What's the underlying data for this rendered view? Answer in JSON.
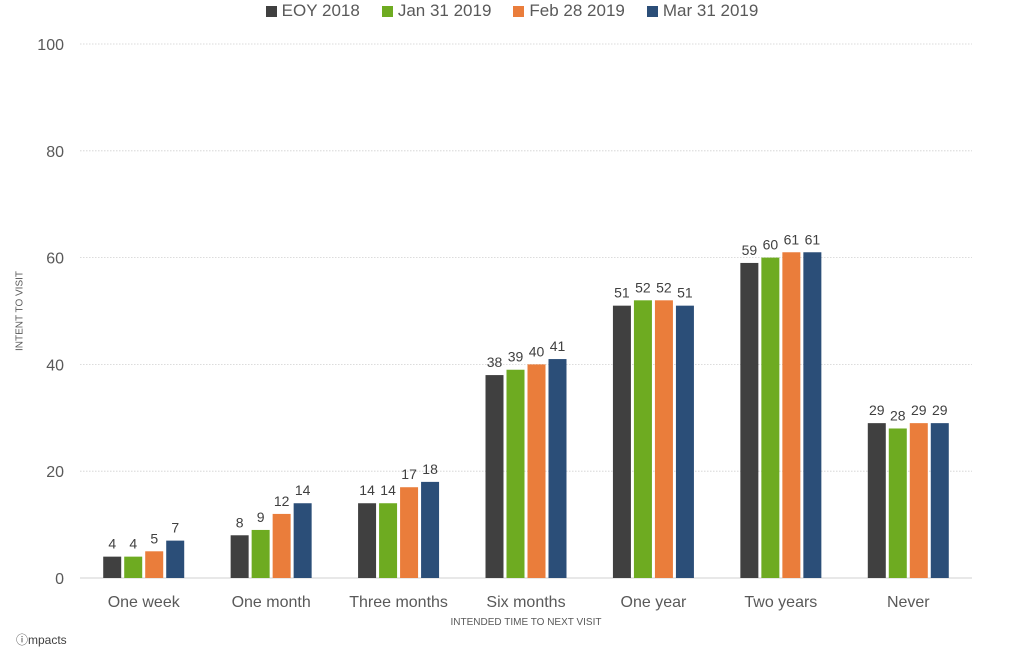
{
  "chart_data": {
    "type": "bar",
    "title": "",
    "xlabel": "INTENDED TIME TO NEXT VISIT",
    "ylabel": "INTENT TO VISIT",
    "ylim": [
      0,
      100
    ],
    "yticks": [
      0,
      20,
      40,
      60,
      80,
      100
    ],
    "grid": true,
    "legend_position": "top-center",
    "categories": [
      "One week",
      "One month",
      "Three months",
      "Six months",
      "One year",
      "Two years",
      "Never"
    ],
    "series": [
      {
        "name": "EOY 2018",
        "color": "#404040",
        "values": [
          4,
          8,
          14,
          38,
          51,
          59,
          29
        ]
      },
      {
        "name": "Jan 31 2019",
        "color": "#6eab21",
        "values": [
          4,
          9,
          14,
          39,
          52,
          60,
          28
        ]
      },
      {
        "name": "Feb 28 2019",
        "color": "#ea7d3b",
        "values": [
          5,
          12,
          17,
          40,
          52,
          61,
          29
        ]
      },
      {
        "name": "Mar 31 2019",
        "color": "#2b4e78",
        "values": [
          7,
          14,
          18,
          41,
          51,
          61,
          29
        ]
      }
    ]
  },
  "brand": "ⓘmpacts"
}
